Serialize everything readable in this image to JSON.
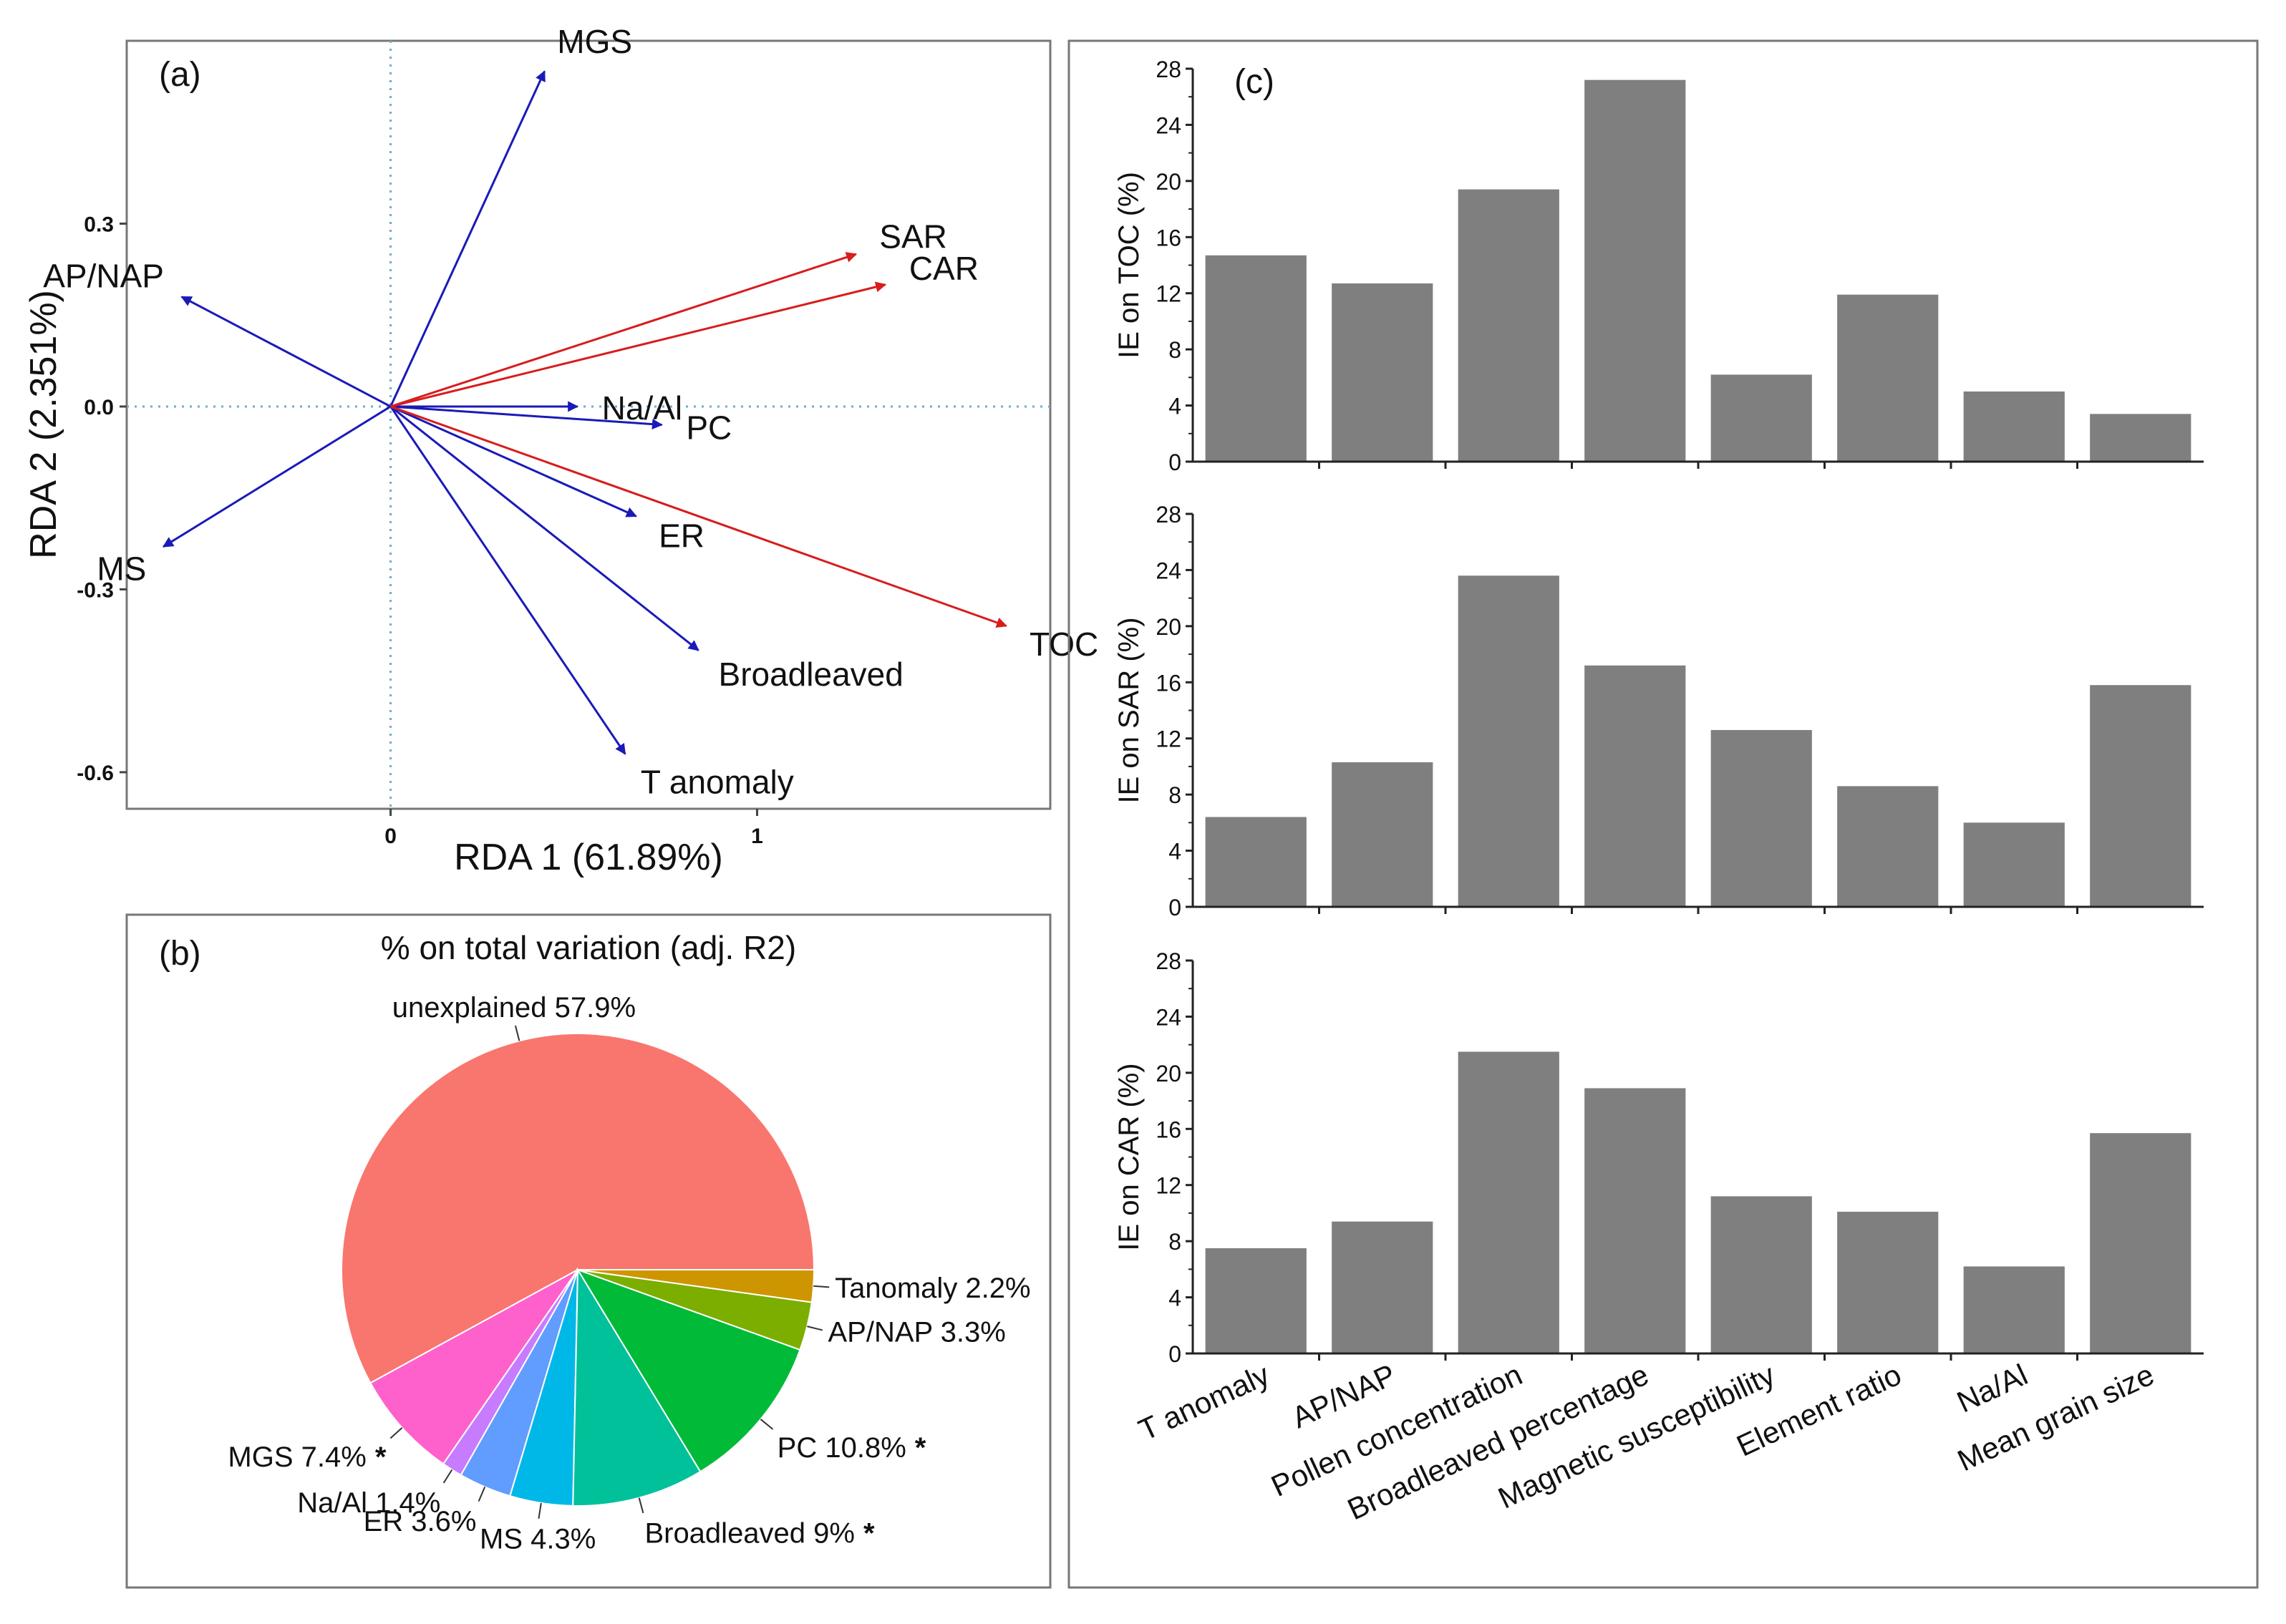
{
  "colors": {
    "env_arrow": "#1a1ab8",
    "resp_arrow": "#d81c1c",
    "bar": "#7f7f7f",
    "frame": "#777777",
    "guide": "#6aaed0"
  },
  "chart_data": [
    {
      "id": "a",
      "type": "scatter",
      "subtype": "rda_biplot",
      "panel_label": "(a)",
      "xlabel": "RDA 1 (61.89%)",
      "ylabel": "RDA 2 (2.351%)",
      "xlim": [
        -0.72,
        1.8
      ],
      "ylim": [
        -0.66,
        0.6
      ],
      "xticks": [
        {
          "v": 0,
          "label": "0"
        },
        {
          "v": 1,
          "label": "1"
        }
      ],
      "yticks": [
        {
          "v": 0.3,
          "label": "0.3"
        },
        {
          "v": 0.0,
          "label": "0.0"
        },
        {
          "v": -0.3,
          "label": "-0.3"
        },
        {
          "v": -0.6,
          "label": "-0.6"
        }
      ],
      "explanatory_arrows": [
        {
          "name": "MGS",
          "x": 0.42,
          "y": 0.55
        },
        {
          "name": "AP/NAP",
          "x": -0.57,
          "y": 0.18
        },
        {
          "name": "MS",
          "x": -0.62,
          "y": -0.23
        },
        {
          "name": "Na/Al",
          "x": 0.51,
          "y": 0.0
        },
        {
          "name": "PC",
          "x": 0.74,
          "y": -0.03
        },
        {
          "name": "ER",
          "x": 0.67,
          "y": -0.18
        },
        {
          "name": "Broadleaved",
          "x": 0.84,
          "y": -0.4
        },
        {
          "name": "T anomaly",
          "x": 0.64,
          "y": -0.57
        }
      ],
      "response_arrows": [
        {
          "name": "SAR",
          "x": 1.27,
          "y": 0.25
        },
        {
          "name": "CAR",
          "x": 1.35,
          "y": 0.2
        },
        {
          "name": "TOC",
          "x": 1.68,
          "y": -0.36
        }
      ]
    },
    {
      "id": "b",
      "type": "pie",
      "panel_label": "(b)",
      "title": "% on total variation (adj. R2)",
      "slices": [
        {
          "label": "unexplained 57.9%",
          "value": 57.9,
          "color": "#f8766d",
          "significant": false
        },
        {
          "label": "MGS 7.4%",
          "value": 7.4,
          "color": "#ff61cc",
          "significant": true
        },
        {
          "label": "Na/Al 1.4%",
          "value": 1.4,
          "color": "#c77cff",
          "significant": false
        },
        {
          "label": "ER 3.6%",
          "value": 3.6,
          "color": "#619cff",
          "significant": false
        },
        {
          "label": "MS 4.3%",
          "value": 4.3,
          "color": "#00b8e7",
          "significant": false
        },
        {
          "label": "Broadleaved 9%",
          "value": 9.0,
          "color": "#00c19a",
          "significant": true
        },
        {
          "label": "PC 10.8%",
          "value": 10.8,
          "color": "#00ba38",
          "significant": true
        },
        {
          "label": "AP/NAP 3.3%",
          "value": 3.3,
          "color": "#7cae00",
          "significant": false
        },
        {
          "label": "Tanomaly 2.2%",
          "value": 2.2,
          "color": "#cd9600",
          "significant": false
        }
      ],
      "significance_marker": "*"
    },
    {
      "id": "c",
      "type": "bar",
      "panel_label": "(c)",
      "categories": [
        "T anomaly",
        "AP/NAP",
        "Pollen concentration",
        "Broadleaved percentage",
        "Magnetic susceptibility",
        "Element ratio",
        "Na/Al",
        "Mean grain size"
      ],
      "ylim": [
        0,
        28
      ],
      "yticks": [
        0,
        4,
        8,
        12,
        16,
        20,
        24,
        28
      ],
      "series": [
        {
          "name": "TOC",
          "ylabel": "IE on TOC (%)",
          "values": [
            14.7,
            12.7,
            19.4,
            27.2,
            6.2,
            11.9,
            5.0,
            3.4
          ]
        },
        {
          "name": "SAR",
          "ylabel": "IE on SAR (%)",
          "values": [
            6.4,
            10.3,
            23.6,
            17.2,
            12.6,
            8.6,
            6.0,
            15.8
          ]
        },
        {
          "name": "CAR",
          "ylabel": "IE on CAR (%)",
          "values": [
            7.5,
            9.4,
            21.5,
            18.9,
            11.2,
            10.1,
            6.2,
            15.7
          ]
        }
      ]
    }
  ]
}
